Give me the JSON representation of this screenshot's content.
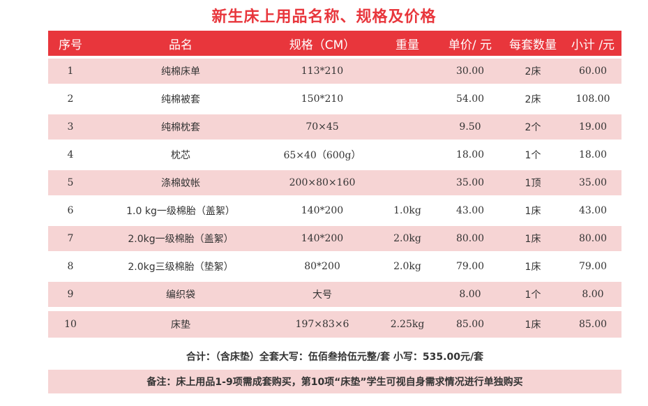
{
  "title": "新生床上用品名称、规格及价格",
  "headers": [
    "序号",
    "品名",
    "规格（CM）",
    "重量",
    "单价/ 元",
    "每套数量",
    "小计 /元"
  ],
  "rows": [
    {
      "no": "1",
      "name": "纯棉床单",
      "spec": "113*210",
      "weight": "",
      "price": "30.00",
      "qty": "2床",
      "subtotal": "60.00"
    },
    {
      "no": "2",
      "name": "纯棉被套",
      "spec": "150*210",
      "weight": "",
      "price": "54.00",
      "qty": "2床",
      "subtotal": "108.00"
    },
    {
      "no": "3",
      "name": "纯棉枕套",
      "spec": "70×45",
      "weight": "",
      "price": "9.50",
      "qty": "2个",
      "subtotal": "19.00"
    },
    {
      "no": "4",
      "name": "枕芯",
      "spec": "65×40（600g）",
      "weight": "",
      "price": "18.00",
      "qty": "1个",
      "subtotal": "18.00"
    },
    {
      "no": "5",
      "name": "涤棉蚊帐",
      "spec": "200×80×160",
      "weight": "",
      "price": "35.00",
      "qty": "1顶",
      "subtotal": "35.00"
    },
    {
      "no": "6",
      "name": "1.0 kg一级棉胎（盖絮）",
      "spec": "140*200",
      "weight": "1.0kg",
      "price": "43.00",
      "qty": "1床",
      "subtotal": "43.00"
    },
    {
      "no": "7",
      "name": "2.0kg一级棉胎（盖絮）",
      "spec": "140*200",
      "weight": "2.0kg",
      "price": "80.00",
      "qty": "1床",
      "subtotal": "80.00"
    },
    {
      "no": "8",
      "name": "2.0kg三级棉胎（垫絮）",
      "spec": "80*200",
      "weight": "2.0kg",
      "price": "79.00",
      "qty": "1床",
      "subtotal": "79.00"
    },
    {
      "no": "9",
      "name": "编织袋",
      "spec": "大号",
      "weight": "",
      "price": "8.00",
      "qty": "1个",
      "subtotal": "8.00"
    },
    {
      "no": "10",
      "name": "床垫",
      "spec": "197×83×6",
      "weight": "2.25kg",
      "price": "85.00",
      "qty": "1床",
      "subtotal": "85.00"
    }
  ],
  "summary": "合计：（含床垫）全套大写：伍佰叁拾伍元整/套 小写：535.00元/套",
  "note": "备注：床上用品1-9项需成套购买，第10项“床垫”学生可视自身需求情况进行单独购买",
  "colors": {
    "header_bg": "#e8363c",
    "row_pink": "#f6d4d4",
    "title": "#e8363c"
  }
}
